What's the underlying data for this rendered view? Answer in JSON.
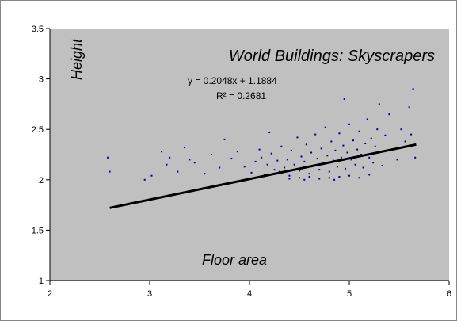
{
  "chart_data": {
    "type": "scatter",
    "title": "World Buildings: Skyscrapers",
    "xlabel": "Floor area",
    "ylabel": "Height",
    "xlim": [
      2,
      6
    ],
    "ylim": [
      1,
      3.5
    ],
    "xticks": [
      "2",
      "3",
      "4",
      "5",
      "6"
    ],
    "yticks": [
      "1",
      "1.5",
      "2",
      "2.5",
      "3",
      "3.5"
    ],
    "grid": false,
    "plot_background": "#c0c0c0",
    "point_color": "#00008b",
    "trendline": {
      "slope": 0.2048,
      "intercept": 1.1884,
      "x_range": [
        2.6,
        5.67
      ],
      "equation_label": "y = 0.2048x + 1.1884",
      "r2_label": "R² = 0.2681",
      "color": "#000000"
    },
    "series": [
      {
        "points": [
          [
            2.58,
            2.22
          ],
          [
            2.6,
            2.08
          ],
          [
            2.95,
            2.0
          ],
          [
            3.02,
            2.04
          ],
          [
            3.12,
            2.28
          ],
          [
            3.17,
            2.15
          ],
          [
            3.2,
            2.22
          ],
          [
            3.28,
            2.08
          ],
          [
            3.35,
            2.32
          ],
          [
            3.4,
            2.2
          ],
          [
            3.45,
            2.17
          ],
          [
            3.55,
            2.06
          ],
          [
            3.62,
            2.25
          ],
          [
            3.7,
            2.12
          ],
          [
            3.75,
            2.4
          ],
          [
            3.82,
            2.21
          ],
          [
            3.88,
            2.28
          ],
          [
            3.95,
            2.13
          ],
          [
            4.02,
            2.07
          ],
          [
            4.06,
            2.18
          ],
          [
            4.1,
            2.3
          ],
          [
            4.12,
            2.22
          ],
          [
            4.15,
            2.05
          ],
          [
            4.18,
            2.15
          ],
          [
            4.2,
            2.47
          ],
          [
            4.22,
            2.26
          ],
          [
            4.25,
            2.1
          ],
          [
            4.28,
            2.19
          ],
          [
            4.3,
            2.08
          ],
          [
            4.32,
            2.33
          ],
          [
            4.35,
            2.12
          ],
          [
            4.38,
            2.2
          ],
          [
            4.4,
            2.04
          ],
          [
            4.42,
            2.29
          ],
          [
            4.45,
            2.15
          ],
          [
            4.48,
            2.42
          ],
          [
            4.5,
            2.09
          ],
          [
            4.52,
            2.23
          ],
          [
            4.55,
            2.18
          ],
          [
            4.57,
            2.35
          ],
          [
            4.6,
            2.06
          ],
          [
            4.62,
            2.27
          ],
          [
            4.64,
            2.14
          ],
          [
            4.66,
            2.45
          ],
          [
            4.68,
            2.21
          ],
          [
            4.7,
            2.1
          ],
          [
            4.72,
            2.31
          ],
          [
            4.74,
            2.17
          ],
          [
            4.76,
            2.52
          ],
          [
            4.78,
            2.24
          ],
          [
            4.8,
            2.08
          ],
          [
            4.82,
            2.38
          ],
          [
            4.84,
            2.19
          ],
          [
            4.86,
            2.29
          ],
          [
            4.88,
            2.13
          ],
          [
            4.9,
            2.46
          ],
          [
            4.92,
            2.22
          ],
          [
            4.94,
            2.34
          ],
          [
            4.96,
            2.11
          ],
          [
            4.98,
            2.27
          ],
          [
            5.0,
            2.55
          ],
          [
            5.02,
            2.2
          ],
          [
            5.04,
            2.39
          ],
          [
            5.06,
            2.15
          ],
          [
            5.08,
            2.3
          ],
          [
            5.1,
            2.48
          ],
          [
            5.12,
            2.25
          ],
          [
            5.14,
            2.12
          ],
          [
            5.16,
            2.36
          ],
          [
            5.18,
            2.6
          ],
          [
            5.2,
            2.22
          ],
          [
            5.22,
            2.41
          ],
          [
            5.24,
            2.17
          ],
          [
            5.26,
            2.33
          ],
          [
            5.28,
            2.5
          ],
          [
            5.3,
            2.28
          ],
          [
            5.33,
            2.14
          ],
          [
            5.36,
            2.44
          ],
          [
            5.4,
            2.65
          ],
          [
            5.44,
            2.3
          ],
          [
            5.48,
            2.2
          ],
          [
            5.52,
            2.5
          ],
          [
            5.56,
            2.38
          ],
          [
            5.6,
            2.72
          ],
          [
            5.62,
            2.45
          ],
          [
            5.64,
            2.9
          ],
          [
            5.66,
            2.22
          ],
          [
            4.95,
            2.8
          ],
          [
            5.3,
            2.75
          ],
          [
            4.5,
            2.02
          ],
          [
            4.6,
            2.03
          ],
          [
            4.7,
            2.01
          ],
          [
            4.8,
            2.02
          ],
          [
            4.9,
            2.03
          ],
          [
            5.0,
            2.04
          ],
          [
            5.1,
            2.02
          ],
          [
            4.4,
            2.01
          ],
          [
            4.55,
            2.0
          ],
          [
            4.85,
            2.0
          ],
          [
            5.2,
            2.05
          ]
        ]
      }
    ]
  }
}
